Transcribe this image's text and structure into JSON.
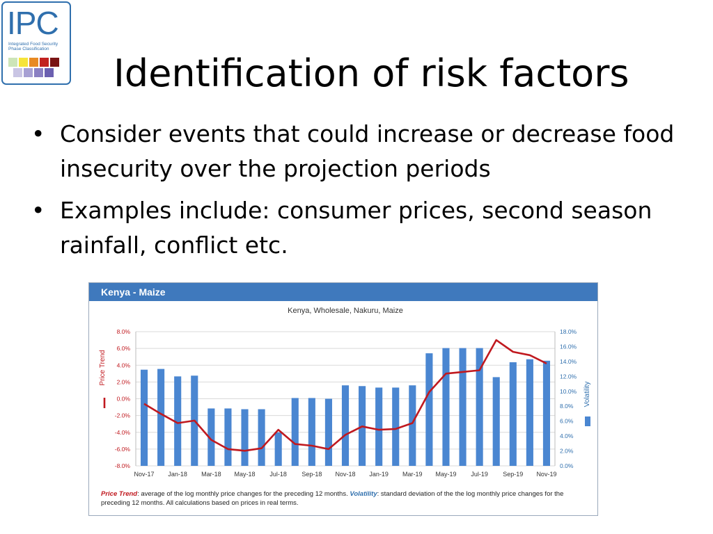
{
  "logo": {
    "letters": "IPC",
    "subtitle_line1": "Integrated Food Security",
    "subtitle_line2": "Phase Classification",
    "colors": [
      "#cde5b8",
      "#f6e43a",
      "#e88a23",
      "#c22220",
      "#7a1414",
      "#c9c5e4",
      "#a7a0d3",
      "#8a7fc2",
      "#6b5fb0"
    ]
  },
  "slide": {
    "title": "Identification of risk factors",
    "bullet_char": "•",
    "bullets": [
      "Consider events that could increase or decrease food insecurity over the projection periods",
      "Examples include: consumer prices, second season rainfall, conflict etc."
    ]
  },
  "panel": {
    "header": "Kenya - Maize",
    "footer": {
      "term1": "Price Trend",
      "text1": ": average of the log monthly price changes for the preceding 12 months. ",
      "term2": "Volatility",
      "text2": ": standard deviation of the the log monthly price changes for the preceding 12 months. All calculations based on prices in real terms."
    }
  },
  "colors": {
    "bar": "#4a86d1",
    "line": "#c0191f",
    "header": "#3f79bd"
  },
  "chart_data": {
    "type": "bar",
    "title": "Kenya, Wholesale, Nakuru, Maize",
    "ylabel": "Price Trend",
    "y2label": "Volatility",
    "ylim": [
      -8,
      8
    ],
    "y2lim": [
      0,
      18
    ],
    "yticks": [
      "8.0%",
      "6.0%",
      "4.0%",
      "2.0%",
      "0.0%",
      "-2.0%",
      "-4.0%",
      "-6.0%",
      "-8.0%"
    ],
    "y2ticks": [
      "18.0%",
      "16.0%",
      "14.0%",
      "12.0%",
      "10.0%",
      "8.0%",
      "6.0%",
      "4.0%",
      "2.0%",
      "0.0%"
    ],
    "x_tick_labels": [
      "Nov-17",
      "Jan-18",
      "Mar-18",
      "May-18",
      "Jul-18",
      "Sep-18",
      "Nov-18",
      "Jan-19",
      "Mar-19",
      "May-19",
      "Jul-19",
      "Sep-19",
      "Nov-19"
    ],
    "categories": [
      "Nov-17",
      "Dec-17",
      "Jan-18",
      "Feb-18",
      "Mar-18",
      "Apr-18",
      "May-18",
      "Jun-18",
      "Jul-18",
      "Aug-18",
      "Sep-18",
      "Oct-18",
      "Nov-18",
      "Dec-18",
      "Jan-19",
      "Feb-19",
      "Mar-19",
      "Apr-19",
      "May-19",
      "Jun-19",
      "Jul-19",
      "Aug-19",
      "Sep-19",
      "Oct-19",
      "Nov-19"
    ],
    "series": [
      {
        "name": "Volatility",
        "axis": "right",
        "type": "bar",
        "values": [
          12.9,
          13.0,
          12.0,
          12.1,
          7.7,
          7.7,
          7.6,
          7.6,
          4.5,
          9.1,
          9.1,
          9.0,
          10.8,
          10.7,
          10.5,
          10.5,
          10.8,
          15.1,
          15.8,
          15.8,
          15.8,
          11.9,
          13.9,
          14.3,
          14.1
        ]
      },
      {
        "name": "Price Trend",
        "axis": "left",
        "type": "line",
        "values": [
          -0.6,
          -1.8,
          -2.9,
          -2.6,
          -4.9,
          -6.0,
          -6.2,
          -5.9,
          -3.7,
          -5.4,
          -5.6,
          -6.0,
          -4.3,
          -3.3,
          -3.7,
          -3.6,
          -2.9,
          0.8,
          3.0,
          3.2,
          3.4,
          7.0,
          5.6,
          5.2,
          4.2
        ]
      }
    ]
  }
}
